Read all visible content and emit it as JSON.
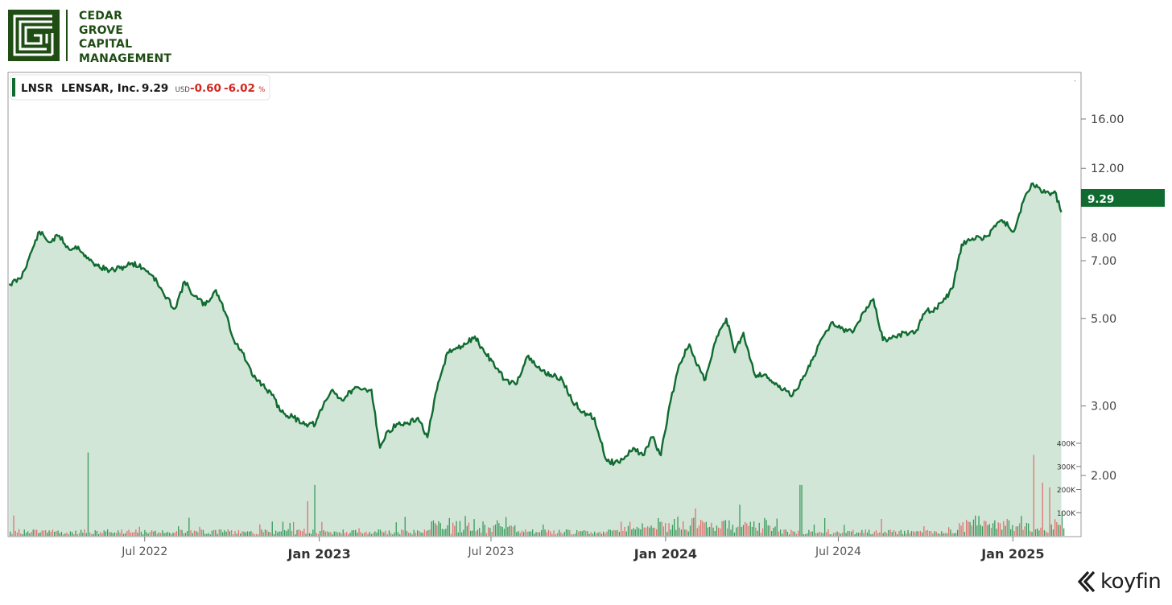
{
  "brand": {
    "line1": "CEDAR",
    "line2": "GROVE",
    "line3": "CAPITAL",
    "line4": "MANAGEMENT",
    "color": "#1f4d14"
  },
  "legend": {
    "ticker": "LNSR",
    "name": "LENSAR, Inc.",
    "price": "9.29",
    "currency": "USD",
    "change": "-0.60",
    "change_pct": "-6.02",
    "pct_sign": "%"
  },
  "watermark": "koyfin",
  "colors": {
    "line": "#0f6b30",
    "area": "#d2e6d8",
    "vol_up": "#3a9a5b",
    "vol_down": "#e0716e",
    "neg": "#d3261d"
  },
  "chart_data": {
    "type": "line",
    "title": "",
    "xlabel": "",
    "ylabel": "",
    "y_scale": "log",
    "ylim": [
      1.4,
      21.0
    ],
    "xlim": [
      "2022-02-07",
      "2025-02-24"
    ],
    "current_price_label": "9.29",
    "y_ticks": [
      "16.00",
      "12.00",
      "8.00",
      "7.00",
      "5.00",
      "3.00",
      "2.00"
    ],
    "y_tick_values": [
      16,
      12,
      8,
      7,
      5,
      3,
      2
    ],
    "x_ticks": [
      {
        "date": "2022-07-01",
        "label": "Jul 2022",
        "bold": false
      },
      {
        "date": "2023-01-01",
        "label": "Jan 2023",
        "bold": true
      },
      {
        "date": "2023-07-01",
        "label": "Jul 2023",
        "bold": false
      },
      {
        "date": "2024-01-01",
        "label": "Jan 2024",
        "bold": true
      },
      {
        "date": "2024-07-01",
        "label": "Jul 2024",
        "bold": false
      },
      {
        "date": "2025-01-01",
        "label": "Jan 2025",
        "bold": true
      }
    ],
    "volume_ticks": [
      "400K",
      "300K",
      "200K",
      "100K"
    ],
    "volume_tick_values": [
      400000,
      300000,
      200000,
      100000
    ],
    "series": [
      {
        "x": [
          "2022-02-08",
          "2022-02-20",
          "2022-03-01",
          "2022-03-12",
          "2022-03-22",
          "2022-04-02",
          "2022-04-12",
          "2022-04-22",
          "2022-05-01",
          "2022-05-12",
          "2022-05-25",
          "2022-06-05",
          "2022-06-18",
          "2022-06-30",
          "2022-07-10",
          "2022-07-22",
          "2022-08-02",
          "2022-08-12",
          "2022-08-22",
          "2022-09-03",
          "2022-09-14",
          "2022-09-25",
          "2022-10-03",
          "2022-10-12",
          "2022-10-22",
          "2022-11-02",
          "2022-11-12",
          "2022-11-22",
          "2022-12-05",
          "2022-12-18",
          "2022-12-28",
          "2023-01-05",
          "2023-01-15",
          "2023-01-25",
          "2023-02-05",
          "2023-02-15",
          "2023-02-25",
          "2023-03-06",
          "2023-03-15",
          "2023-03-25",
          "2023-04-05",
          "2023-04-15",
          "2023-04-25",
          "2023-05-05",
          "2023-05-16",
          "2023-05-27",
          "2023-06-04",
          "2023-06-14",
          "2023-06-24",
          "2023-07-02",
          "2023-07-15",
          "2023-07-27",
          "2023-08-08",
          "2023-08-22",
          "2023-09-02",
          "2023-09-14",
          "2023-09-24",
          "2023-10-06",
          "2023-10-18",
          "2023-10-30",
          "2023-11-08",
          "2023-11-18",
          "2023-11-28",
          "2023-12-08",
          "2023-12-18",
          "2023-12-27",
          "2024-01-05",
          "2024-01-15",
          "2024-01-26",
          "2024-02-03",
          "2024-02-12",
          "2024-02-24",
          "2024-03-05",
          "2024-03-14",
          "2024-03-23",
          "2024-04-04",
          "2024-04-16",
          "2024-04-25",
          "2024-05-04",
          "2024-05-14",
          "2024-05-24",
          "2024-06-05",
          "2024-06-15",
          "2024-06-25",
          "2024-07-06",
          "2024-07-16",
          "2024-07-28",
          "2024-08-07",
          "2024-08-17",
          "2024-08-29",
          "2024-09-09",
          "2024-09-20",
          "2024-10-01",
          "2024-10-12",
          "2024-10-22",
          "2024-10-30",
          "2024-11-08",
          "2024-11-18",
          "2024-11-28",
          "2024-12-06",
          "2024-12-15",
          "2024-12-23",
          "2025-01-02",
          "2025-01-12",
          "2025-01-22",
          "2025-01-30",
          "2025-02-08",
          "2025-02-14",
          "2025-02-21"
        ],
        "y": [
          6.1,
          6.3,
          7.1,
          8.3,
          7.8,
          8.1,
          7.5,
          7.6,
          7.1,
          6.8,
          6.6,
          6.7,
          6.9,
          6.7,
          6.4,
          5.7,
          5.3,
          6.2,
          5.7,
          5.4,
          5.9,
          5.1,
          4.4,
          4.1,
          3.6,
          3.4,
          3.2,
          2.9,
          2.8,
          2.7,
          2.7,
          3.0,
          3.3,
          3.1,
          3.3,
          3.3,
          3.3,
          2.35,
          2.6,
          2.7,
          2.7,
          2.8,
          2.5,
          3.3,
          4.1,
          4.2,
          4.3,
          4.5,
          4.1,
          3.9,
          3.5,
          3.4,
          4.0,
          3.7,
          3.6,
          3.5,
          3.1,
          2.9,
          2.8,
          2.2,
          2.15,
          2.2,
          2.35,
          2.25,
          2.5,
          2.25,
          3.0,
          3.8,
          4.3,
          3.8,
          3.5,
          4.5,
          5.0,
          4.1,
          4.6,
          3.6,
          3.6,
          3.4,
          3.3,
          3.2,
          3.5,
          4.0,
          4.5,
          4.9,
          4.7,
          4.6,
          5.2,
          5.6,
          4.4,
          4.5,
          4.6,
          4.6,
          5.2,
          5.3,
          5.6,
          6.0,
          7.7,
          7.9,
          8.0,
          8.1,
          8.7,
          8.8,
          8.3,
          9.9,
          11.0,
          10.6,
          10.4,
          10.5,
          9.29
        ]
      }
    ],
    "volume": {
      "notable_spikes": [
        {
          "date": "2022-05-02",
          "value": 360000
        },
        {
          "date": "2022-12-27",
          "value": 220000
        },
        {
          "date": "2022-12-20",
          "value": 150000
        },
        {
          "date": "2025-01-22",
          "value": 350000
        },
        {
          "date": "2025-01-31",
          "value": 230000
        },
        {
          "date": "2025-02-08",
          "value": 210000
        },
        {
          "date": "2024-05-22",
          "value": 220000
        }
      ],
      "typical_range": [
        0,
        130000
      ]
    }
  }
}
